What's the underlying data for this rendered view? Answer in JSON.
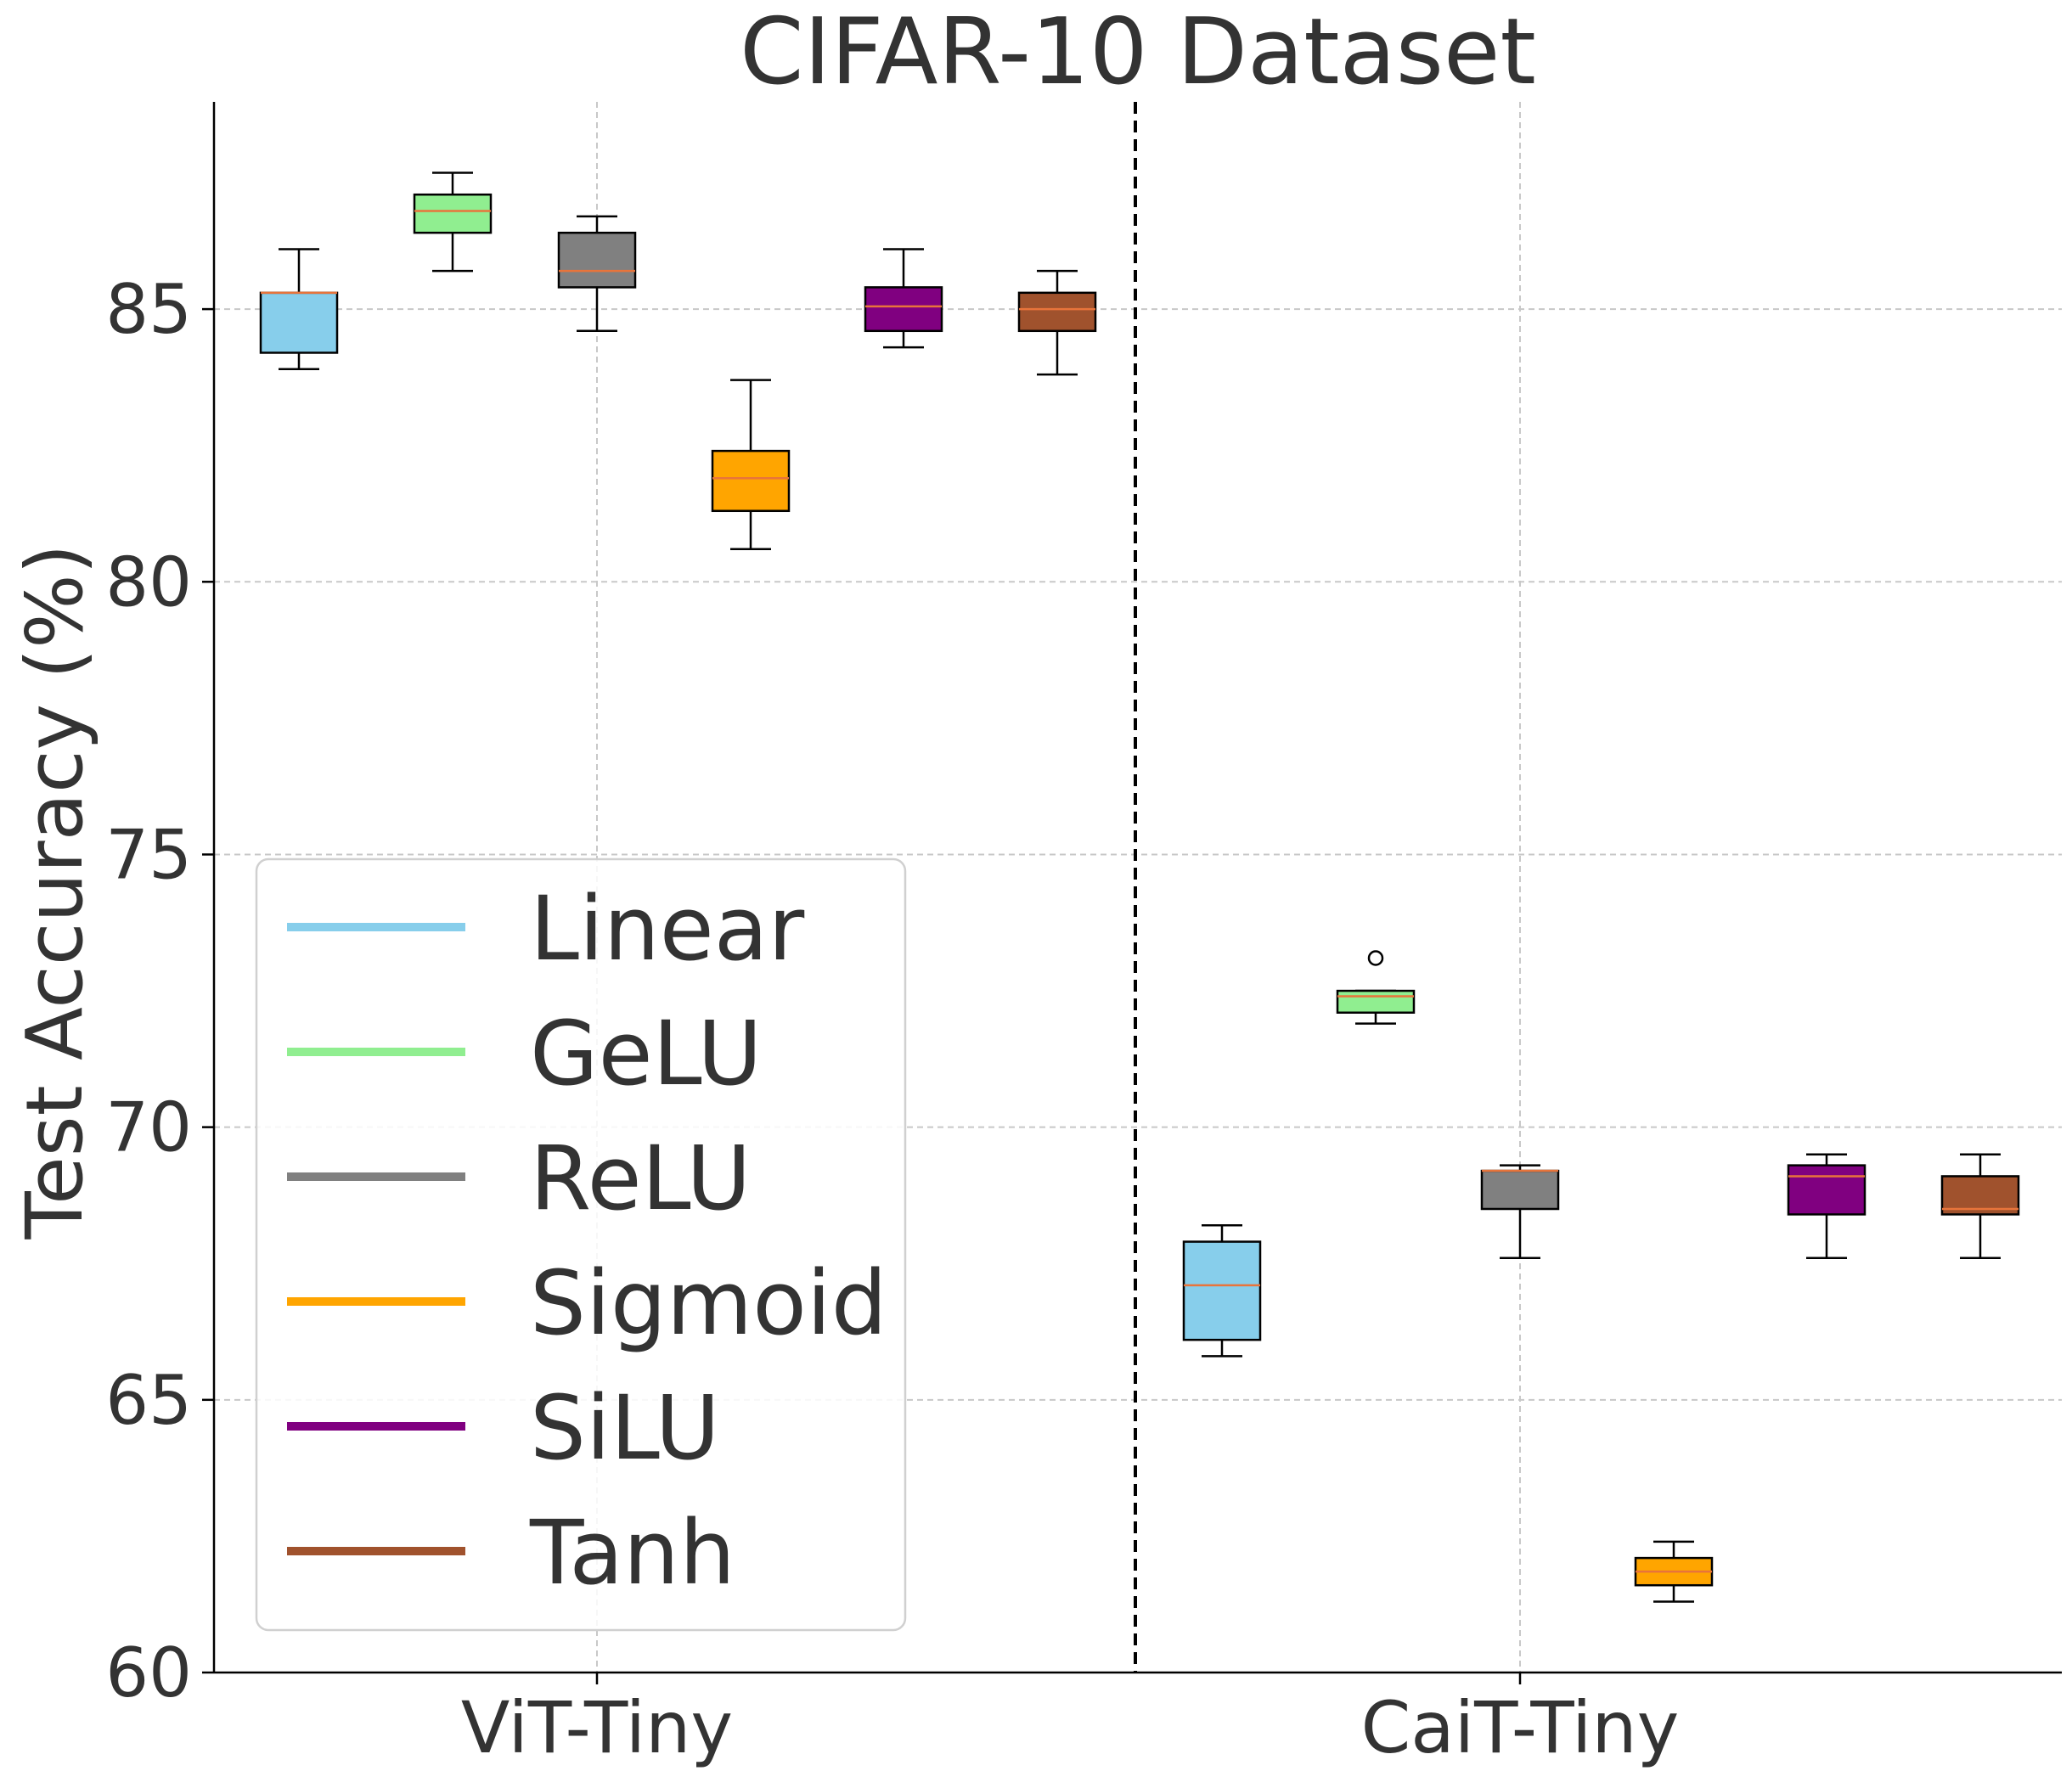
{
  "chart_data": {
    "type": "box",
    "title": "CIFAR-10 Dataset",
    "xlabel": "",
    "ylabel": "Test Accuracy (%)",
    "ylim": [
      60,
      88.8
    ],
    "yticks": [
      "60",
      "65",
      "70",
      "75",
      "80",
      "85"
    ],
    "categories": [
      "ViT-Tiny",
      "CaiT-Tiny"
    ],
    "grid": true,
    "legend_position": "lower-left",
    "series": [
      {
        "name": "Linear",
        "color": "#87CEEB",
        "boxes": [
          {
            "whislo": 83.9,
            "q1": 84.2,
            "med": 85.3,
            "q3": 85.3,
            "whishi": 86.1,
            "fliers": []
          },
          {
            "whislo": 65.8,
            "q1": 66.1,
            "med": 67.1,
            "q3": 67.9,
            "whishi": 68.2,
            "fliers": []
          }
        ]
      },
      {
        "name": "GeLU",
        "color": "#90EE90",
        "boxes": [
          {
            "whislo": 85.7,
            "q1": 86.4,
            "med": 86.8,
            "q3": 87.1,
            "whishi": 87.5,
            "fliers": []
          },
          {
            "whislo": 71.9,
            "q1": 72.1,
            "med": 72.4,
            "q3": 72.5,
            "whishi": 72.5,
            "fliers": [
              73.1
            ]
          }
        ]
      },
      {
        "name": "ReLU",
        "color": "#808080",
        "boxes": [
          {
            "whislo": 84.6,
            "q1": 85.4,
            "med": 85.7,
            "q3": 86.4,
            "whishi": 86.7,
            "fliers": []
          },
          {
            "whislo": 67.6,
            "q1": 68.5,
            "med": 69.2,
            "q3": 69.2,
            "whishi": 69.3,
            "fliers": []
          }
        ]
      },
      {
        "name": "Sigmoid",
        "color": "#FFA500",
        "boxes": [
          {
            "whislo": 80.6,
            "q1": 81.3,
            "med": 81.9,
            "q3": 82.4,
            "whishi": 83.7,
            "fliers": []
          },
          {
            "whislo": 61.3,
            "q1": 61.6,
            "med": 61.85,
            "q3": 62.1,
            "whishi": 62.4,
            "fliers": []
          }
        ]
      },
      {
        "name": "SiLU",
        "color": "#800080",
        "boxes": [
          {
            "whislo": 84.3,
            "q1": 84.6,
            "med": 85.05,
            "q3": 85.4,
            "whishi": 86.1,
            "fliers": []
          },
          {
            "whislo": 67.6,
            "q1": 68.4,
            "med": 69.1,
            "q3": 69.3,
            "whishi": 69.5,
            "fliers": []
          }
        ]
      },
      {
        "name": "Tanh",
        "color": "#A0522D",
        "boxes": [
          {
            "whislo": 83.8,
            "q1": 84.6,
            "med": 85.0,
            "q3": 85.3,
            "whishi": 85.7,
            "fliers": []
          },
          {
            "whislo": 67.6,
            "q1": 68.4,
            "med": 68.5,
            "q3": 69.1,
            "whishi": 69.5,
            "fliers": []
          }
        ]
      }
    ],
    "median_color": "#E8743B",
    "separator": "dashed vertical line between groups"
  }
}
